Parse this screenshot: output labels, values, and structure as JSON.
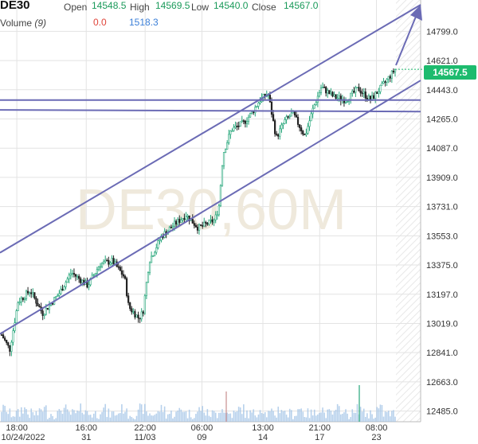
{
  "header": {
    "symbol": "DE30",
    "open_label": "Open",
    "open_value": "14548.5",
    "high_label": "High",
    "high_value": "14569.5",
    "low_label": "Low",
    "low_value": "14540.0",
    "close_label": "Close",
    "close_value": "14567.0",
    "volume_label": "Volume",
    "volume_period": "(9)",
    "volume_value_1": "0.0",
    "volume_value_2": "1518.3"
  },
  "watermark": "DE30,60M",
  "last_price": "14567.5",
  "chart_data": {
    "type": "candlestick",
    "title": "DE30",
    "interval": "60M",
    "ylim": [
      12420,
      14990
    ],
    "y_ticks": [
      14799.0,
      14621.0,
      14443.0,
      14265.0,
      14087.0,
      13909.0,
      13731.0,
      13553.0,
      13375.0,
      13197.0,
      13019.0,
      12841.0,
      12663.0,
      12485.0
    ],
    "x_ticks": [
      {
        "time": "18:00",
        "date": "10/24/2022"
      },
      {
        "time": "16:00",
        "date": "31"
      },
      {
        "time": "22:00",
        "date": "11/03"
      },
      {
        "time": "06:00",
        "date": "09"
      },
      {
        "time": "13:00",
        "date": "14"
      },
      {
        "time": "21:00",
        "date": "17"
      },
      {
        "time": "08:00",
        "date": "23"
      }
    ],
    "price_path": [
      [
        0,
        12950
      ],
      [
        0.02,
        12860
      ],
      [
        0.04,
        13150
      ],
      [
        0.07,
        13220
      ],
      [
        0.1,
        13080
      ],
      [
        0.14,
        13200
      ],
      [
        0.17,
        13330
      ],
      [
        0.21,
        13250
      ],
      [
        0.24,
        13380
      ],
      [
        0.27,
        13400
      ],
      [
        0.3,
        13300
      ],
      [
        0.31,
        13120
      ],
      [
        0.335,
        13050
      ],
      [
        0.345,
        13090
      ],
      [
        0.36,
        13400
      ],
      [
        0.39,
        13550
      ],
      [
        0.42,
        13620
      ],
      [
        0.45,
        13680
      ],
      [
        0.48,
        13600
      ],
      [
        0.52,
        13650
      ],
      [
        0.53,
        13730
      ],
      [
        0.54,
        14050
      ],
      [
        0.56,
        14200
      ],
      [
        0.59,
        14240
      ],
      [
        0.61,
        14300
      ],
      [
        0.63,
        14380
      ],
      [
        0.65,
        14420
      ],
      [
        0.67,
        14150
      ],
      [
        0.69,
        14250
      ],
      [
        0.71,
        14300
      ],
      [
        0.74,
        14160
      ],
      [
        0.76,
        14330
      ],
      [
        0.78,
        14460
      ],
      [
        0.81,
        14400
      ],
      [
        0.84,
        14380
      ],
      [
        0.87,
        14450
      ],
      [
        0.9,
        14380
      ],
      [
        0.93,
        14470
      ],
      [
        0.96,
        14567
      ]
    ],
    "trendlines": [
      {
        "name": "channel-upper",
        "points": [
          [
            "10/24/2022 18:00",
            13450
          ],
          [
            "11/23 10:00",
            14961
          ]
        ]
      },
      {
        "name": "channel-lower",
        "points": [
          [
            "10/24/2022 18:00",
            12955
          ],
          [
            "11/23 12:00",
            14500
          ]
        ]
      },
      {
        "name": "horizontal-upper",
        "points": [
          [
            "10/24/2022 18:00",
            14380
          ],
          [
            "11/23 12:00",
            14380
          ]
        ]
      },
      {
        "name": "horizontal-lower",
        "points": [
          [
            "10/24/2022 18:00",
            14320
          ],
          [
            "11/23 12:00",
            14310
          ]
        ]
      }
    ],
    "indicators": [
      "Volume (9)"
    ]
  },
  "colors": {
    "up": "#26a67a",
    "down": "#222222",
    "line": "#6b6bb5",
    "grid": "#e3e3e3",
    "watermark": "#efe9dc",
    "axis_text": "#333333",
    "volume": "#9fc1e6",
    "tag": "#1dbb6e"
  }
}
